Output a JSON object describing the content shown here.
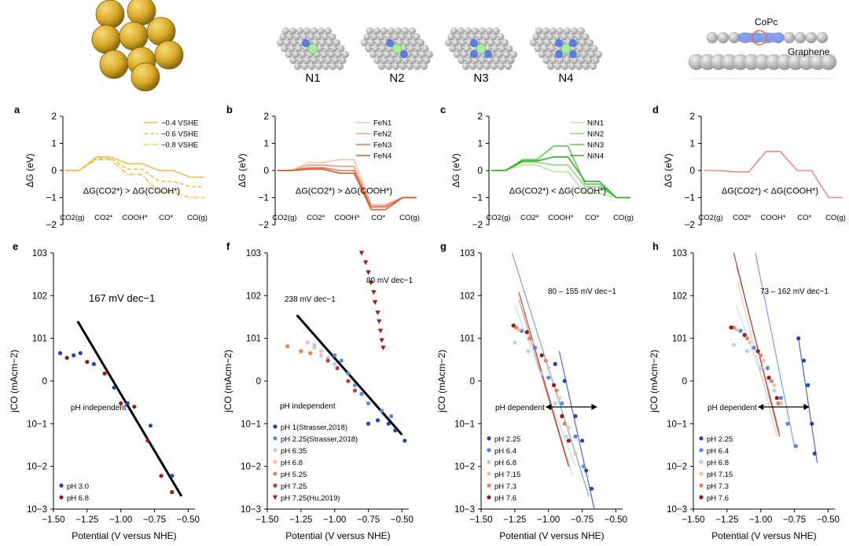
{
  "header": {
    "site_labels": [
      "N1",
      "N2",
      "N3",
      "N4"
    ],
    "copc_label": "CoPc",
    "graphene_label": "Graphene"
  },
  "colors": {
    "gold": "#f0c040",
    "fe": [
      "#f4c8b4",
      "#ee9f80",
      "#e57752",
      "#d4562f"
    ],
    "ni": [
      "#b9e6a4",
      "#8fd97a",
      "#5ec64e",
      "#3aa832"
    ],
    "copc": "#e98a88",
    "red_dark": "#9b1a1c",
    "blue_dark": "#2b3fb0"
  },
  "chart_data": [
    {
      "panel": "a",
      "type": "line",
      "ylabel": "ΔG (eV)",
      "ylim": [
        -2,
        2
      ],
      "categories": [
        "CO2(g)",
        "CO2*",
        "COOH*",
        "CO*",
        "CO(g)"
      ],
      "series": [
        {
          "name": "−0.4 VSHE",
          "style": "solid",
          "values": [
            0,
            0.5,
            0.25,
            0,
            -0.25
          ]
        },
        {
          "name": "−0.6 VSHE",
          "style": "dashed",
          "values": [
            0,
            0.45,
            0.05,
            -0.4,
            -0.6
          ]
        },
        {
          "name": "−0.8 VSHE",
          "style": "dashdot",
          "values": [
            0,
            0.4,
            -0.15,
            -0.8,
            -1.0
          ]
        }
      ],
      "annotation": "ΔG(CO2*) > ΔG(COOH*)"
    },
    {
      "panel": "b",
      "type": "line",
      "ylabel": "ΔG (eV)",
      "ylim": [
        -2,
        2
      ],
      "categories": [
        "CO2(g)",
        "CO2*",
        "COOH*",
        "CO*",
        "CO(g)"
      ],
      "series": [
        {
          "name": "FeN1",
          "values": [
            0,
            0.3,
            0.4,
            -1.25,
            -1.0
          ]
        },
        {
          "name": "FeN2",
          "values": [
            0,
            0.2,
            0.15,
            -1.3,
            -1.0
          ]
        },
        {
          "name": "FeN3",
          "values": [
            0,
            0.1,
            0.0,
            -1.35,
            -1.0
          ]
        },
        {
          "name": "FeN4",
          "values": [
            0,
            0.05,
            -0.1,
            -1.45,
            -1.0
          ]
        }
      ],
      "annotation": "ΔG(CO2*) > ΔG(COOH*)"
    },
    {
      "panel": "c",
      "type": "line",
      "ylabel": "ΔG (eV)",
      "ylim": [
        -2,
        2
      ],
      "categories": [
        "CO2(g)",
        "CO2*",
        "COOH*",
        "CO*",
        "CO(g)"
      ],
      "series": [
        {
          "name": "NiN1",
          "values": [
            0,
            0.2,
            -0.05,
            -0.85,
            -1.0
          ]
        },
        {
          "name": "NiN2",
          "values": [
            0,
            0.3,
            0.2,
            -0.6,
            -1.0
          ]
        },
        {
          "name": "NiN3",
          "values": [
            0,
            0.4,
            0.9,
            -0.5,
            -1.0
          ]
        },
        {
          "name": "NiN4",
          "values": [
            0,
            0.35,
            0.5,
            -0.4,
            -1.0
          ]
        }
      ],
      "annotation": "ΔG(CO2*) < ΔG(COOH*)"
    },
    {
      "panel": "d",
      "type": "line",
      "ylabel": "ΔG (eV)",
      "ylim": [
        -2,
        2
      ],
      "categories": [
        "CO2(g)",
        "CO2*",
        "COOH*",
        "CO*",
        "CO(g)"
      ],
      "series": [
        {
          "name": "CoPc",
          "values": [
            0,
            -0.05,
            0.7,
            0.0,
            -1.0
          ]
        }
      ],
      "annotation": "ΔG(CO2*) < ΔG(COOH*)"
    },
    {
      "panel": "e",
      "type": "scatter",
      "xlabel": "Potential (V versus NHE)",
      "ylabel": "jCO (mAcm−2)",
      "xlim": [
        -1.5,
        -0.45
      ],
      "xticks": [
        -1.5,
        -1.25,
        -1.0,
        -0.75,
        -0.5
      ],
      "ytick_labels": [
        "10−3",
        "10−2",
        "10−1",
        "0",
        "101",
        "102",
        "103"
      ],
      "series": [
        {
          "name": "pH 3.0",
          "color": "#2b3fb0",
          "marker": "circle",
          "points": [
            [
              -1.45,
              4.5
            ],
            [
              -1.35,
              4.0
            ],
            [
              -1.3,
              4.5
            ],
            [
              -1.2,
              2.5
            ],
            [
              -1.05,
              0.7
            ],
            [
              -0.95,
              0.3
            ],
            [
              -0.78,
              0.09
            ],
            [
              -0.62,
              0.006
            ]
          ]
        },
        {
          "name": "pH 6.8",
          "color": "#9b1a1c",
          "marker": "circle",
          "points": [
            [
              -1.4,
              3.5
            ],
            [
              -1.25,
              2.8
            ],
            [
              -1.12,
              1.5
            ],
            [
              -1.0,
              0.3
            ],
            [
              -0.9,
              0.25
            ],
            [
              -0.8,
              0.04
            ],
            [
              -0.7,
              0.006
            ],
            [
              -0.62,
              0.0025
            ]
          ]
        }
      ],
      "fit_lines": [
        {
          "x": [
            -1.32,
            -0.55
          ],
          "y": [
            25,
            0.002
          ],
          "color": "#000000"
        }
      ],
      "annotations": [
        "167 mV dec−1",
        "pH independent"
      ]
    },
    {
      "panel": "f",
      "type": "scatter",
      "xlabel": "Potential (V versus NHE)",
      "ylabel": "jCO (mAcm−2)",
      "xlim": [
        -1.5,
        -0.45
      ],
      "xticks": [
        -1.5,
        -1.25,
        -1.0,
        -0.75,
        -0.5
      ],
      "ytick_labels": [
        "10−3",
        "10−2",
        "10−1",
        "0",
        "101",
        "102",
        "103"
      ],
      "series": [
        {
          "name": "pH 1(Strasser,2018)",
          "color": "#2b3fb0",
          "marker": "circle",
          "points": [
            [
              -0.75,
              0.1
            ],
            [
              -0.68,
              0.12
            ],
            [
              -0.6,
              0.1
            ],
            [
              -0.55,
              0.07
            ],
            [
              -0.48,
              0.04
            ]
          ]
        },
        {
          "name": "pH 2.25(Strasser,2018)",
          "color": "#5a86dc",
          "marker": "circle",
          "points": [
            [
              -1.0,
              4.0
            ],
            [
              -0.95,
              3.0
            ],
            [
              -0.9,
              1.5
            ],
            [
              -0.85,
              0.8
            ],
            [
              -0.8,
              0.5
            ],
            [
              -0.75,
              0.3
            ],
            [
              -0.65,
              0.2
            ],
            [
              -0.58,
              0.15
            ]
          ]
        },
        {
          "name": "pH 6.35",
          "color": "#b8d0ef",
          "marker": "circle",
          "points": [
            [
              -1.15,
              7.0
            ],
            [
              -1.1,
              5.0
            ],
            [
              -1.05,
              3.5
            ],
            [
              -1.0,
              2.5
            ]
          ]
        },
        {
          "name": "pH 6.8",
          "color": "#f0c0a8",
          "marker": "circle",
          "points": [
            [
              -1.2,
              8.0
            ],
            [
              -1.15,
              6.0
            ],
            [
              -1.1,
              4.0
            ]
          ]
        },
        {
          "name": "pH 5.25",
          "color": "#e9805f",
          "marker": "circle",
          "points": [
            [
              -1.35,
              6.5
            ],
            [
              -1.25,
              5.0
            ],
            [
              -1.18,
              4.5
            ]
          ]
        },
        {
          "name": "pH 7.25",
          "color": "#c53a3a",
          "marker": "circle",
          "points": [
            [
              -1.05,
              3.0
            ],
            [
              -0.98,
              2.0
            ],
            [
              -0.9,
              1.0
            ],
            [
              -0.85,
              0.6
            ]
          ]
        },
        {
          "name": "pH 7.25(Hu,2019)",
          "color": "#9b1a1c",
          "marker": "triangle",
          "points": [
            [
              -0.8,
              1000
            ],
            [
              -0.77,
              600
            ],
            [
              -0.75,
              350
            ],
            [
              -0.73,
              200
            ],
            [
              -0.71,
              120
            ],
            [
              -0.7,
              70
            ],
            [
              -0.68,
              40
            ],
            [
              -0.67,
              25
            ],
            [
              -0.66,
              15
            ],
            [
              -0.65,
              9
            ],
            [
              -0.64,
              6
            ]
          ]
        }
      ],
      "fit_lines": [
        {
          "x": [
            -1.28,
            -0.5
          ],
          "y": [
            35,
            0.055
          ],
          "color": "#000000"
        }
      ],
      "annotations": [
        "238 mV dec−1",
        "80 mV dec−1",
        "pH independent"
      ]
    },
    {
      "panel": "g",
      "type": "scatter",
      "xlabel": "Potential (V versus NHE)",
      "ylabel": "jCO (mAcm−2)",
      "xlim": [
        -1.5,
        -0.45
      ],
      "xticks": [
        -1.5,
        -1.25,
        -1.0,
        -0.75,
        -0.5
      ],
      "ytick_labels": [
        "10−3",
        "10−2",
        "10−1",
        "0",
        "101",
        "102",
        "103"
      ],
      "series": [
        {
          "name": "pH 2.25",
          "color": "#2b3fb0",
          "points": [
            [
              -0.95,
              2.5
            ],
            [
              -0.88,
              1.0
            ],
            [
              -0.8,
              0.15
            ],
            [
              -0.75,
              0.04
            ],
            [
              -0.72,
              0.008
            ],
            [
              -0.68,
              0.003
            ]
          ]
        },
        {
          "name": "pH 6.4",
          "color": "#5a86dc",
          "points": [
            [
              -1.2,
              15
            ],
            [
              -1.1,
              6
            ],
            [
              -1.0,
              1.2
            ],
            [
              -0.9,
              0.3
            ],
            [
              -0.8,
              0.05
            ],
            [
              -0.74,
              0.01
            ]
          ]
        },
        {
          "name": "pH 6.8",
          "color": "#b8d0ef",
          "points": [
            [
              -1.25,
              8
            ],
            [
              -1.15,
              5
            ],
            [
              -1.05,
              1.5
            ],
            [
              -0.95,
              0.3
            ],
            [
              -0.87,
              0.05
            ],
            [
              -0.8,
              0.02
            ]
          ]
        },
        {
          "name": "pH 7.15",
          "color": "#f0c0a8",
          "points": [
            [
              -1.22,
              16
            ],
            [
              -1.12,
              8
            ],
            [
              -1.0,
              2.0
            ],
            [
              -0.92,
              0.4
            ],
            [
              -0.85,
              0.08
            ],
            [
              -0.8,
              0.02
            ]
          ]
        },
        {
          "name": "pH 7.3",
          "color": "#e9805f",
          "points": [
            [
              -1.24,
              18
            ],
            [
              -1.14,
              10
            ],
            [
              -1.02,
              3.0
            ],
            [
              -0.94,
              0.6
            ],
            [
              -0.88,
              0.1
            ]
          ]
        },
        {
          "name": "pH 7.6",
          "color": "#9b1a1c",
          "points": [
            [
              -1.26,
              20
            ],
            [
              -1.16,
              14
            ],
            [
              -1.05,
              4.0
            ],
            [
              -0.96,
              0.8
            ],
            [
              -0.9,
              0.15
            ],
            [
              -0.85,
              0.04
            ]
          ]
        }
      ],
      "fit_lines": [
        {
          "x": [
            -0.92,
            -0.66
          ],
          "y": [
            5,
            0.001
          ],
          "color": "#2b3fb0"
        },
        {
          "x": [
            -1.27,
            -0.7
          ],
          "y": [
            1000,
            0.002
          ],
          "color": "#5a86dc"
        },
        {
          "x": [
            -1.25,
            -0.8
          ],
          "y": [
            60,
            0.01
          ],
          "color": "#b8d0ef"
        },
        {
          "x": [
            -1.2,
            -0.82
          ],
          "y": [
            50,
            0.006
          ],
          "color": "#f0c0a8"
        },
        {
          "x": [
            -1.22,
            -0.85
          ],
          "y": [
            80,
            0.01
          ],
          "color": "#e9805f"
        },
        {
          "x": [
            -1.22,
            -0.85
          ],
          "y": [
            120,
            0.01
          ],
          "color": "#9b1a1c"
        }
      ],
      "annotations": [
        "80 – 155 mV dec−1",
        "pH dependent"
      ]
    },
    {
      "panel": "h",
      "type": "scatter",
      "xlabel": "Potential (V versus NHE)",
      "ylabel": "jCO (mAcm−2)",
      "xlim": [
        -1.5,
        -0.45
      ],
      "xticks": [
        -1.5,
        -1.25,
        -1.0,
        -0.75,
        -0.5
      ],
      "ytick_labels": [
        "10−3",
        "10−2",
        "10−1",
        "0",
        "101",
        "102",
        "103"
      ],
      "series": [
        {
          "name": "pH 2.25",
          "color": "#2b3fb0",
          "points": [
            [
              -0.72,
              10
            ],
            [
              -0.68,
              3.0
            ],
            [
              -0.65,
              0.8
            ],
            [
              -0.62,
              0.1
            ],
            [
              -0.6,
              0.02
            ]
          ]
        },
        {
          "name": "pH 6.4",
          "color": "#5a86dc",
          "points": [
            [
              -1.15,
              15
            ],
            [
              -1.05,
              6
            ],
            [
              -0.95,
              2.0
            ],
            [
              -0.85,
              0.4
            ],
            [
              -0.8,
              0.1
            ],
            [
              -0.74,
              0.03
            ]
          ]
        },
        {
          "name": "pH 6.8",
          "color": "#b8d0ef",
          "points": [
            [
              -1.2,
              7
            ],
            [
              -1.1,
              5
            ],
            [
              -1.0,
              2.0
            ],
            [
              -0.9,
              0.6
            ]
          ]
        },
        {
          "name": "pH 7.15",
          "color": "#f0c0a8",
          "points": [
            [
              -1.18,
              16
            ],
            [
              -1.08,
              8
            ],
            [
              -0.98,
              3.0
            ],
            [
              -0.9,
              0.8
            ],
            [
              -0.85,
              0.3
            ]
          ]
        },
        {
          "name": "pH 7.3",
          "color": "#e9805f",
          "points": [
            [
              -1.2,
              18
            ],
            [
              -1.1,
              10
            ],
            [
              -1.0,
              4.0
            ],
            [
              -0.92,
              1.0
            ],
            [
              -0.87,
              0.3
            ]
          ]
        },
        {
          "name": "pH 7.6",
          "color": "#9b1a1c",
          "points": [
            [
              -1.22,
              18
            ],
            [
              -1.12,
              12
            ],
            [
              -1.02,
              5.0
            ],
            [
              -0.94,
              1.2
            ],
            [
              -0.88,
              0.4
            ]
          ]
        }
      ],
      "fit_lines": [
        {
          "x": [
            -0.72,
            -0.58
          ],
          "y": [
            10,
            0.012
          ],
          "color": "#2b3fb0"
        },
        {
          "x": [
            -1.04,
            -0.75
          ],
          "y": [
            1000,
            0.03
          ],
          "color": "#5a86dc"
        },
        {
          "x": [
            -1.18,
            -0.88
          ],
          "y": [
            60,
            0.12
          ],
          "color": "#b8d0ef"
        },
        {
          "x": [
            -1.17,
            -0.88
          ],
          "y": [
            200,
            0.05
          ],
          "color": "#f0c0a8"
        },
        {
          "x": [
            -1.18,
            -0.86
          ],
          "y": [
            500,
            0.06
          ],
          "color": "#e9805f"
        },
        {
          "x": [
            -1.2,
            -0.86
          ],
          "y": [
            1000,
            0.05
          ],
          "color": "#9b1a1c"
        }
      ],
      "annotations": [
        "73 – 162 mV dec−1",
        "pH dependent"
      ]
    }
  ]
}
